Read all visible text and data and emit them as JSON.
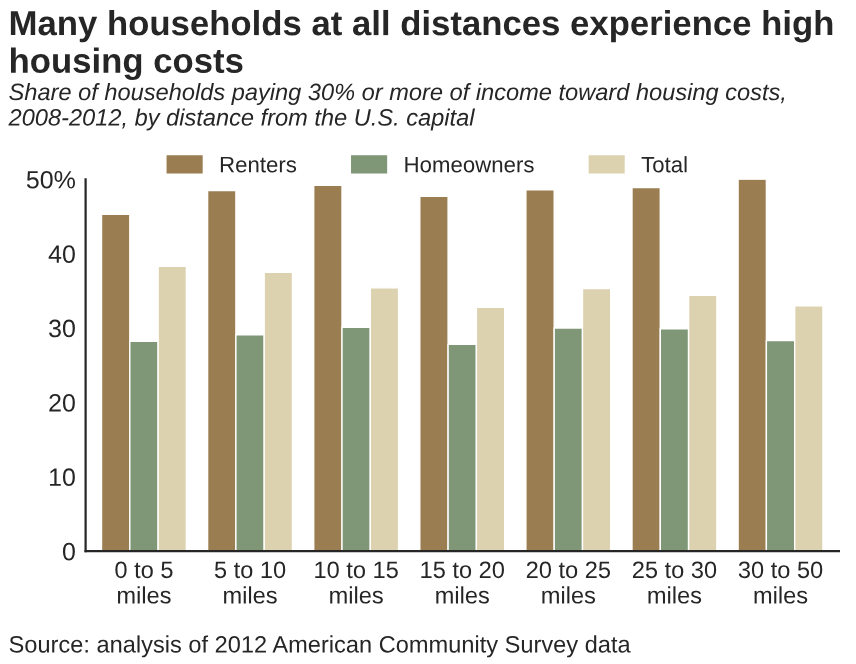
{
  "chart_data": {
    "type": "bar",
    "title": "Many households at all distances experience high housing costs",
    "subtitle": "Share of households paying 30% or more of income toward housing costs, 2008-2012, by distance from the U.S. capital",
    "categories": [
      "0 to 5\nmiles",
      "5 to 10\nmiles",
      "10 to 15\nmiles",
      "15 to 20\nmiles",
      "20 to 25\nmiles",
      "25 to 30\nmiles",
      "30 to 50\nmiles"
    ],
    "series": [
      {
        "name": "Renters",
        "color": "#9a7d50",
        "values": [
          45.3,
          48.5,
          49.2,
          47.7,
          48.6,
          48.9,
          50.0
        ]
      },
      {
        "name": "Homeowners",
        "color": "#7f9677",
        "values": [
          28.2,
          29.1,
          30.1,
          27.8,
          30.0,
          29.9,
          28.3
        ]
      },
      {
        "name": "Total",
        "color": "#ddd2b0",
        "values": [
          38.3,
          37.5,
          35.4,
          32.8,
          35.3,
          34.4,
          33.0
        ]
      }
    ],
    "ylim": [
      0,
      50
    ],
    "yticks": [
      0,
      10,
      20,
      30,
      40,
      {
        "value": 50,
        "label": "50%"
      }
    ],
    "grid": false,
    "legend": "top",
    "annotations": [
      "Source: analysis of 2012 American Community Survey data"
    ]
  }
}
